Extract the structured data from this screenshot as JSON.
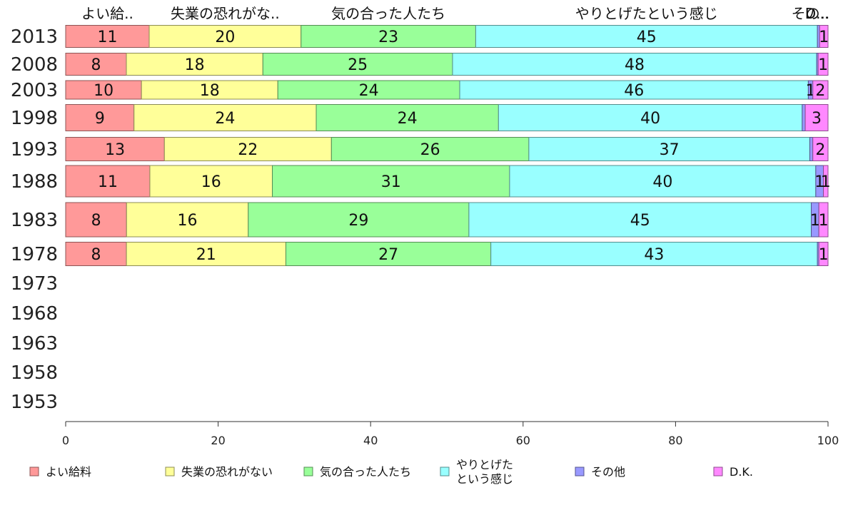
{
  "chart_data": {
    "type": "bar",
    "orientation": "horizontal",
    "stacked": true,
    "categories": [
      "2013",
      "2008",
      "2003",
      "1998",
      "1993",
      "1988",
      "1983",
      "1978",
      "1973",
      "1968",
      "1963",
      "1958",
      "1953"
    ],
    "series": [
      {
        "name": "よい給料",
        "header": "よい給..",
        "color": "#ff9999",
        "values": [
          11,
          8,
          10,
          9,
          13,
          11,
          8,
          8,
          null,
          null,
          null,
          null,
          null
        ]
      },
      {
        "name": "失業の恐れがない",
        "header": "失業の恐れがな..",
        "color": "#ffff99",
        "values": [
          20,
          18,
          18,
          24,
          22,
          16,
          16,
          21,
          null,
          null,
          null,
          null,
          null
        ]
      },
      {
        "name": "気の合った人たち",
        "header": "気の合った人たち",
        "color": "#99ff99",
        "values": [
          23,
          25,
          24,
          24,
          26,
          31,
          29,
          27,
          null,
          null,
          null,
          null,
          null
        ]
      },
      {
        "name": "やりとげたという感じ",
        "legend_lines": [
          "やりとげた",
          "という感じ"
        ],
        "header": "やりとげたという感じ",
        "color": "#99ffff",
        "values": [
          45,
          48,
          46,
          40,
          37,
          40,
          45,
          43,
          null,
          null,
          null,
          null,
          null
        ]
      },
      {
        "name": "その他",
        "header": "その..",
        "color": "#9999ff",
        "values": [
          0.3,
          0.2,
          0.6,
          0.4,
          0.4,
          1,
          1,
          0.2,
          null,
          null,
          null,
          null,
          null
        ],
        "labels": [
          "",
          "",
          "1",
          "",
          "",
          "1",
          "1",
          "",
          "",
          "",
          "",
          "",
          ""
        ]
      },
      {
        "name": "D.K.",
        "header": "D...",
        "color": "#ff88ff",
        "values": [
          1.1,
          1.3,
          2,
          3,
          2,
          0.6,
          1.2,
          1.2,
          null,
          null,
          null,
          null,
          null
        ],
        "labels": [
          "1",
          "1",
          "2",
          "3",
          "2",
          "1",
          "1",
          "1",
          "",
          "",
          "",
          "",
          ""
        ]
      }
    ],
    "x_ticks": [
      "0",
      "20",
      "40",
      "60",
      "80",
      "100"
    ],
    "xlim": [
      0,
      100
    ],
    "legend_position": "bottom",
    "grid": false
  }
}
